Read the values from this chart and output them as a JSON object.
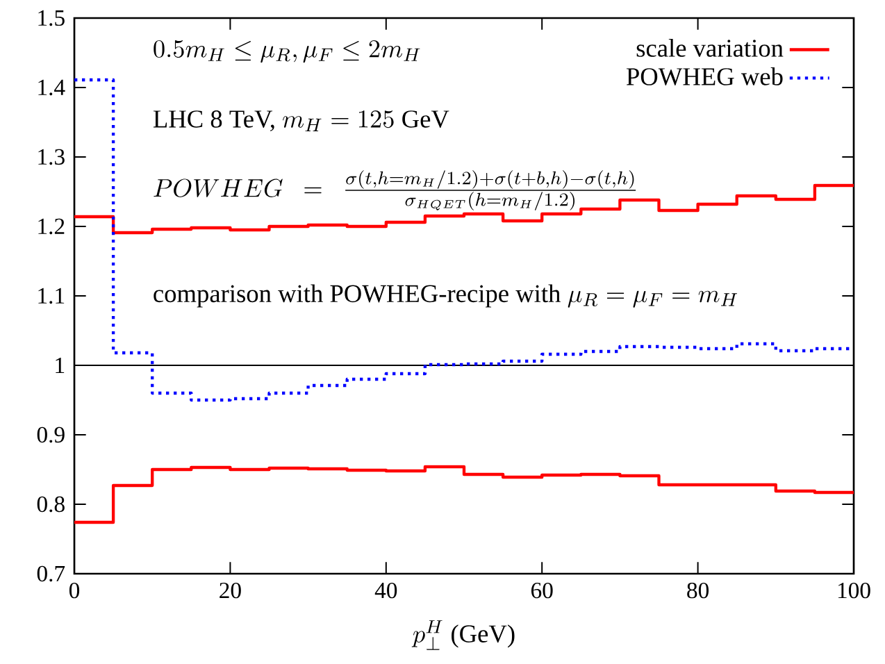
{
  "chart_data": {
    "type": "step",
    "xlabel": "p_\\perp^H\\ \\text{(GeV)}",
    "x": [
      0,
      5,
      10,
      15,
      20,
      25,
      30,
      35,
      40,
      45,
      50,
      55,
      60,
      65,
      70,
      75,
      80,
      85,
      90,
      95,
      100
    ],
    "series": [
      {
        "name": "scale variation",
        "color": "#ff0000",
        "line_style": "solid",
        "values": [
          1.214,
          1.191,
          1.196,
          1.198,
          1.195,
          1.2,
          1.202,
          1.2,
          1.206,
          1.215,
          1.218,
          1.208,
          1.218,
          1.225,
          1.238,
          1.223,
          1.232,
          1.244,
          1.239,
          1.259,
          1.259
        ]
      },
      {
        "color": "#ff0000",
        "line_style": "solid",
        "values": [
          0.774,
          0.827,
          0.85,
          0.853,
          0.85,
          0.852,
          0.851,
          0.849,
          0.848,
          0.854,
          0.843,
          0.839,
          0.842,
          0.843,
          0.841,
          0.828,
          0.828,
          0.828,
          0.819,
          0.817,
          0.817
        ]
      },
      {
        "name": "POWHEG web",
        "color": "#0000ff",
        "line_style": "dotted",
        "values": [
          1.411,
          1.018,
          0.96,
          0.95,
          0.952,
          0.96,
          0.971,
          0.98,
          0.988,
          1.001,
          1.002,
          1.006,
          1.016,
          1.02,
          1.027,
          1.026,
          1.024,
          1.031,
          1.021,
          1.024,
          1.024
        ]
      }
    ],
    "xlim": [
      0,
      100
    ],
    "ylim": [
      0.7,
      1.5
    ],
    "xticks": [
      0,
      20,
      40,
      60,
      80,
      100
    ],
    "yticks": [
      0.7,
      0.8,
      0.9,
      1,
      1.1,
      1.2,
      1.3,
      1.4,
      1.5
    ],
    "ref_lines": [
      {
        "axis": "y",
        "value": 1,
        "color": "#000000"
      }
    ],
    "annotations": [
      "0.5m_H \\le \\mu_R, \\mu_F \\le 2m_H",
      "\\text{LHC 8 TeV, } m_H = 125\\text{ GeV}",
      "POWHEG\\ \\ =\\ \\ \\frac{\\sigma(t,h{=}m_H/1.2)+\\sigma(t{+}b,h)-\\sigma(t,h)}{\\sigma_{HQET}(h{=}m_H/1.2)}",
      "\\text{comparison with POWHEG-recipe with } \\mu_R = \\mu_F = m_H"
    ],
    "legend": "top right",
    "grid": false
  }
}
